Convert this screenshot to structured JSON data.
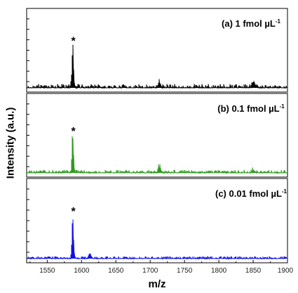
{
  "chart_data": {
    "type": "line",
    "xlabel": "m/z",
    "ylabel": "Intensity (a.u.)",
    "xlim": [
      1520,
      1900
    ],
    "xticks": [
      1550,
      1600,
      1650,
      1700,
      1750,
      1800,
      1850,
      1900
    ],
    "ylim": [
      0,
      1
    ],
    "peak_marker": "*",
    "peak_position": 1587,
    "panels": [
      {
        "label": "(a) 1 fmol µL",
        "label_sup": "-1",
        "color": "#000000",
        "noise": 0.05,
        "peaks": [
          {
            "x": 1587,
            "y": 0.62
          },
          {
            "x": 1713,
            "y": 0.09
          },
          {
            "x": 1850,
            "y": 0.09
          }
        ]
      },
      {
        "label": "(b) 0.1 fmol µL",
        "label_sup": "-1",
        "color": "#2e9a1e",
        "noise": 0.04,
        "peaks": [
          {
            "x": 1587,
            "y": 0.55
          },
          {
            "x": 1713,
            "y": 0.1
          },
          {
            "x": 1850,
            "y": 0.05
          }
        ]
      },
      {
        "label": "(c) 0.01 fmol µL",
        "label_sup": "-1",
        "color": "#1010e6",
        "noise": 0.03,
        "peaks": [
          {
            "x": 1587,
            "y": 0.62
          },
          {
            "x": 1612,
            "y": 0.08
          }
        ]
      }
    ]
  }
}
